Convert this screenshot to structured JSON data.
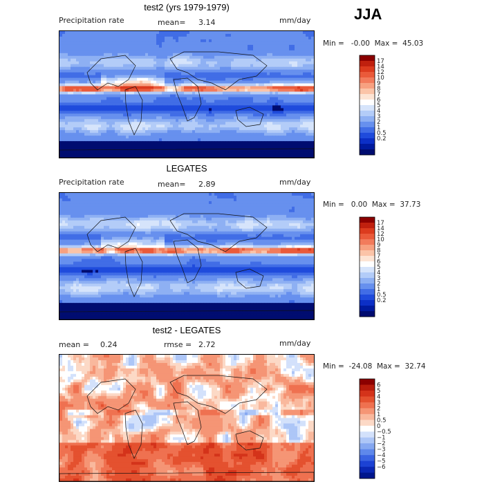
{
  "season": "JJA",
  "panels": [
    {
      "title": "test2 (yrs 1979-1979)",
      "field": "Precipitation rate",
      "stat1": "mean=",
      "stat1_value": "3.14",
      "stat2": "",
      "stat2_value": "",
      "units": "mm/day",
      "minmax": "Min =   -0.00  Max =  45.03",
      "kind": "abs"
    },
    {
      "title": "LEGATES",
      "field": "Precipitation rate",
      "stat1": "mean=",
      "stat1_value": "2.89",
      "stat2": "",
      "stat2_value": "",
      "units": "mm/day",
      "minmax": "Min =   0.00  Max =  37.73",
      "kind": "abs"
    },
    {
      "title": "test2 - LEGATES",
      "field": "",
      "stat1": "mean =",
      "stat1_value": "0.24",
      "stat2": "rmse =",
      "stat2_value": "2.72",
      "units": "mm/day",
      "minmax": "Min =  -24.08  Max =  32.74",
      "kind": "diff"
    }
  ],
  "chart_data": [
    {
      "type": "heatmap",
      "title": "test2 (yrs 1979-1979)",
      "field": "Precipitation rate",
      "units": "mm/day",
      "mean": 3.14,
      "min": -0.0,
      "max": 45.03,
      "colorbar": {
        "levels": [
          "17",
          "14",
          "12",
          "10",
          "9",
          "8",
          "7",
          "6",
          "5",
          "4",
          "3",
          "2",
          "1",
          "0.5",
          "0.2"
        ],
        "colors": [
          "#8b0000",
          "#c0200e",
          "#dc3b1e",
          "#ea5a3a",
          "#f27b5c",
          "#f7a181",
          "#fbc4a8",
          "#fde4d4",
          "#ffffff",
          "#d6e4fb",
          "#b3ccf8",
          "#8eb0f3",
          "#6790ee",
          "#416de6",
          "#1f4bdc",
          "#0c2fc6",
          "#001a9e",
          "#000c70"
        ]
      }
    },
    {
      "type": "heatmap",
      "title": "LEGATES",
      "field": "Precipitation rate",
      "units": "mm/day",
      "mean": 2.89,
      "min": 0.0,
      "max": 37.73,
      "colorbar": {
        "levels": [
          "17",
          "14",
          "12",
          "10",
          "9",
          "8",
          "7",
          "6",
          "5",
          "4",
          "3",
          "2",
          "1",
          "0.5",
          "0.2"
        ],
        "colors": [
          "#8b0000",
          "#c0200e",
          "#dc3b1e",
          "#ea5a3a",
          "#f27b5c",
          "#f7a181",
          "#fbc4a8",
          "#fde4d4",
          "#ffffff",
          "#d6e4fb",
          "#b3ccf8",
          "#8eb0f3",
          "#6790ee",
          "#416de6",
          "#1f4bdc",
          "#0c2fc6",
          "#001a9e",
          "#000c70"
        ]
      }
    },
    {
      "type": "heatmap",
      "title": "test2 - LEGATES",
      "units": "mm/day",
      "mean": 0.24,
      "rmse": 2.72,
      "min": -24.08,
      "max": 32.74,
      "colorbar": {
        "levels": [
          "6",
          "5",
          "4",
          "3",
          "2",
          "1",
          "0.5",
          "0",
          "−0.5",
          "−1",
          "−2",
          "−3",
          "−4",
          "−5",
          "−6"
        ],
        "colors": [
          "#8b0000",
          "#b81c0c",
          "#d4331a",
          "#e4512f",
          "#ef7150",
          "#f59575",
          "#f9b89d",
          "#fcd9c6",
          "#ffffff",
          "#d3e1fb",
          "#adc6f7",
          "#86a8f1",
          "#5f88eb",
          "#3a63e2",
          "#1c42d4",
          "#0a27b4",
          "#00168c"
        ]
      }
    }
  ]
}
